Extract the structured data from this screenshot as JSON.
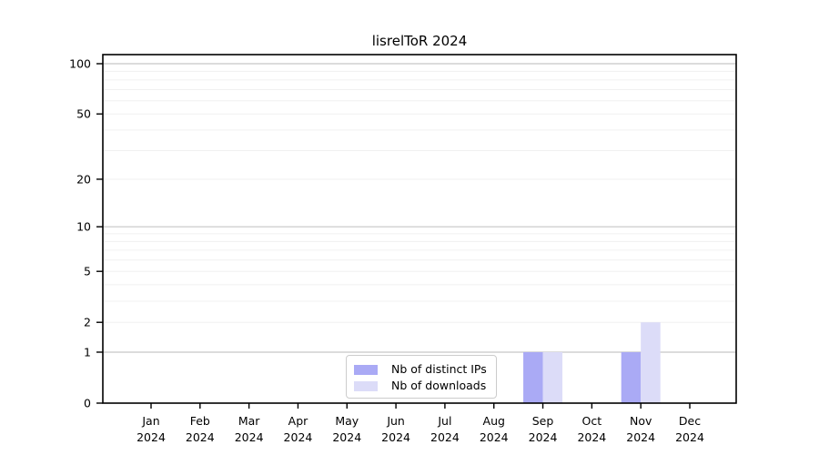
{
  "chart_data": {
    "type": "bar",
    "title": "lisrelToR 2024",
    "categories": [
      "Jan",
      "Feb",
      "Mar",
      "Apr",
      "May",
      "Jun",
      "Jul",
      "Aug",
      "Sep",
      "Oct",
      "Nov",
      "Dec"
    ],
    "year": "2024",
    "series": [
      {
        "name": "Nb of distinct IPs",
        "color": "#aaaaf5",
        "values": [
          0,
          0,
          0,
          0,
          0,
          0,
          0,
          0,
          1,
          0,
          1,
          0
        ]
      },
      {
        "name": "Nb of downloads",
        "color": "#dcdcf8",
        "values": [
          0,
          0,
          0,
          0,
          0,
          0,
          0,
          0,
          1,
          0,
          2,
          0
        ]
      }
    ],
    "yscale": "log1p",
    "ylim": [
      0,
      113
    ],
    "yticks": [
      0,
      1,
      2,
      5,
      10,
      20,
      50,
      100
    ],
    "major_gridlines": [
      1,
      10,
      100
    ],
    "minor_gridlines": [
      2,
      3,
      4,
      5,
      6,
      7,
      8,
      9,
      20,
      30,
      40,
      50,
      60,
      70,
      80,
      90
    ],
    "legend_position": "lower center",
    "grid": "horizontal only",
    "colors": {
      "major_grid": "#c6c6c6",
      "minor_grid": "#f0f0f0",
      "axis": "#000000",
      "tick_text": "#000000",
      "background": "#ffffff"
    }
  }
}
